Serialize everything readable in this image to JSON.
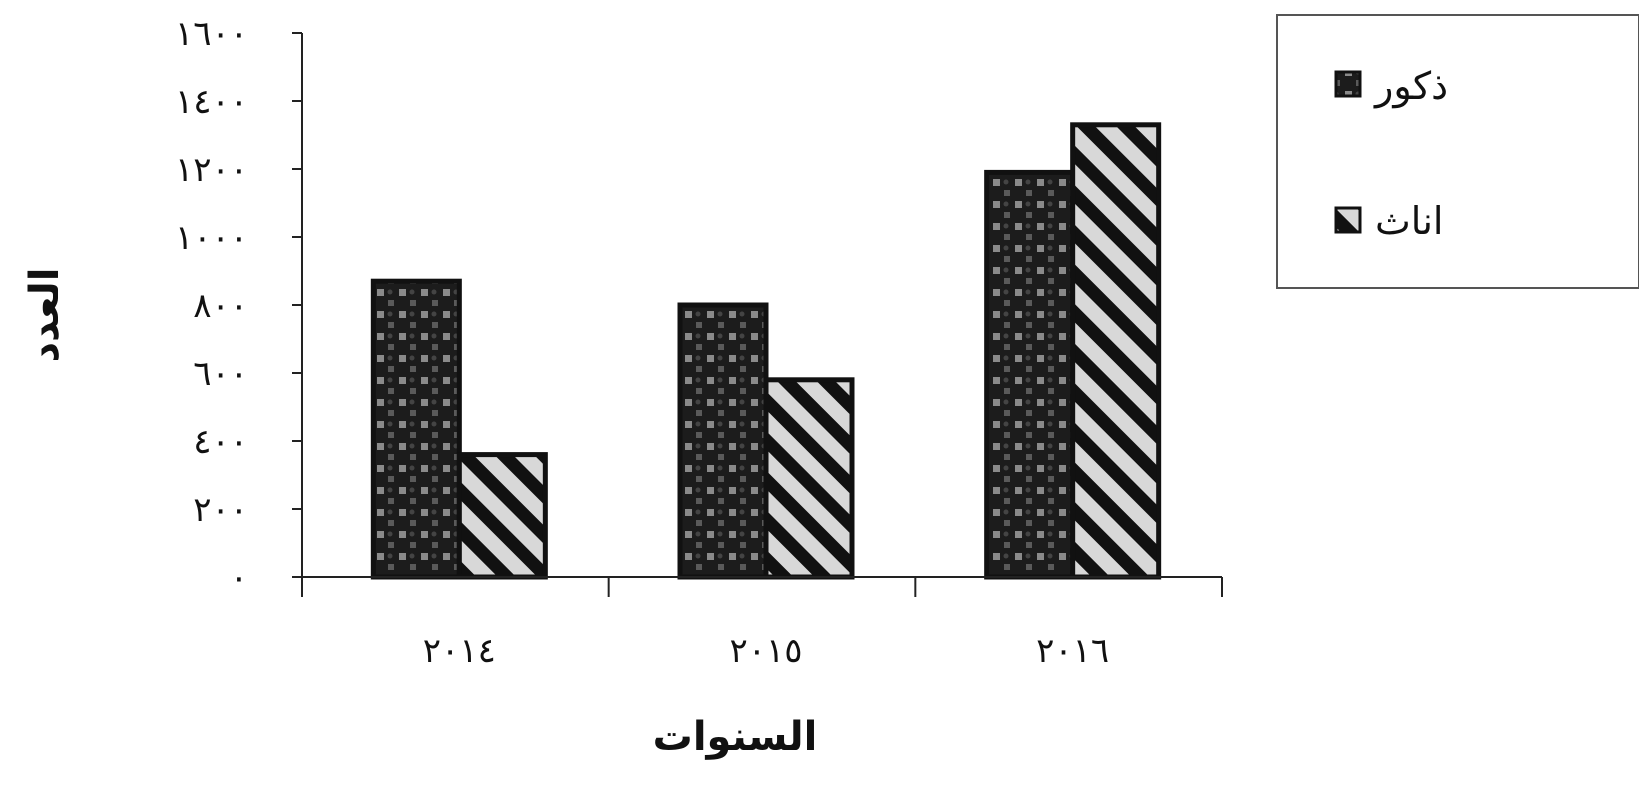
{
  "chart_data": {
    "type": "bar",
    "categories": [
      "٢٠١٤",
      "٢٠١٥",
      "٢٠١٦"
    ],
    "series": [
      {
        "name": "ذكور",
        "values": [
          870,
          800,
          1190
        ],
        "pattern": "dots",
        "color": "#222222"
      },
      {
        "name": "اناث",
        "values": [
          360,
          580,
          1330
        ],
        "pattern": "stripes",
        "color": "#222222"
      }
    ],
    "ylim": [
      0,
      1600
    ],
    "yticks": [
      0,
      200,
      400,
      600,
      800,
      1000,
      1200,
      1400,
      1600
    ],
    "ytick_labels": [
      "٠",
      "٢٠٠",
      "٤٠٠",
      "٦٠٠",
      "٨٠٠",
      "١٠٠٠",
      "١٢٠٠",
      "١٤٠٠",
      "١٦٠٠"
    ],
    "xlabel": "السنوات",
    "ylabel": "العدد",
    "grid": false,
    "legend_position": "top-right"
  }
}
